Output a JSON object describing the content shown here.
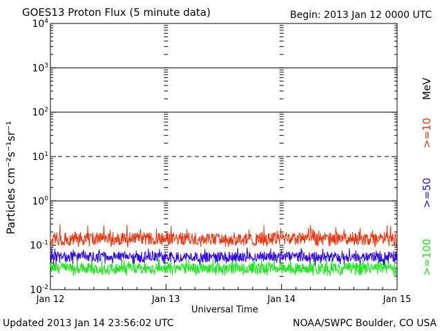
{
  "header": {
    "title": "GOES13 Proton Flux (5 minute data)",
    "begin": "Begin: 2013 Jan 12 0000 UTC"
  },
  "footer": {
    "updated": "Updated 2013 Jan 14 23:56:02 UTC",
    "credit": "NOAA/SWPC Boulder, CO USA"
  },
  "legend": {
    "unit": "MeV",
    "items": [
      {
        "label": ">=10",
        "color": "#ff2a00"
      },
      {
        "label": ">=50",
        "color": "#2a00ff"
      },
      {
        "label": ">=100",
        "color": "#11ee11"
      }
    ]
  },
  "chart_data": {
    "type": "line",
    "xlabel": "Universal Time",
    "ylabel": "Particles cm⁻²s⁻¹sr⁻¹",
    "y_scale": "log",
    "ylim": [
      0.01,
      10000
    ],
    "y_ticks": [
      {
        "value": 10000,
        "base": "10",
        "exp": "4"
      },
      {
        "value": 1000,
        "base": "10",
        "exp": "3"
      },
      {
        "value": 100,
        "base": "10",
        "exp": "2"
      },
      {
        "value": 10,
        "base": "10",
        "exp": "1"
      },
      {
        "value": 1,
        "base": "10",
        "exp": "0"
      },
      {
        "value": 0.1,
        "base": "10",
        "exp": "-1"
      },
      {
        "value": 0.01,
        "base": "10",
        "exp": "-2"
      }
    ],
    "x_ticks": [
      "Jan 12",
      "Jan 13",
      "Jan 14",
      "Jan 15"
    ],
    "reference_lines": [
      {
        "value": 1000,
        "style": "solid"
      },
      {
        "value": 100,
        "style": "solid"
      },
      {
        "value": 10,
        "style": "dashed"
      },
      {
        "value": 1,
        "style": "solid"
      }
    ],
    "series": [
      {
        "name": ">=10 MeV",
        "color": "#ff2a00",
        "typical": 0.14,
        "min": 0.09,
        "max": 0.3
      },
      {
        "name": ">=50 MeV",
        "color": "#2a00ff",
        "typical": 0.055,
        "min": 0.035,
        "max": 0.09
      },
      {
        "name": ">=100 MeV",
        "color": "#11ee11",
        "typical": 0.03,
        "min": 0.02,
        "max": 0.055
      }
    ]
  }
}
